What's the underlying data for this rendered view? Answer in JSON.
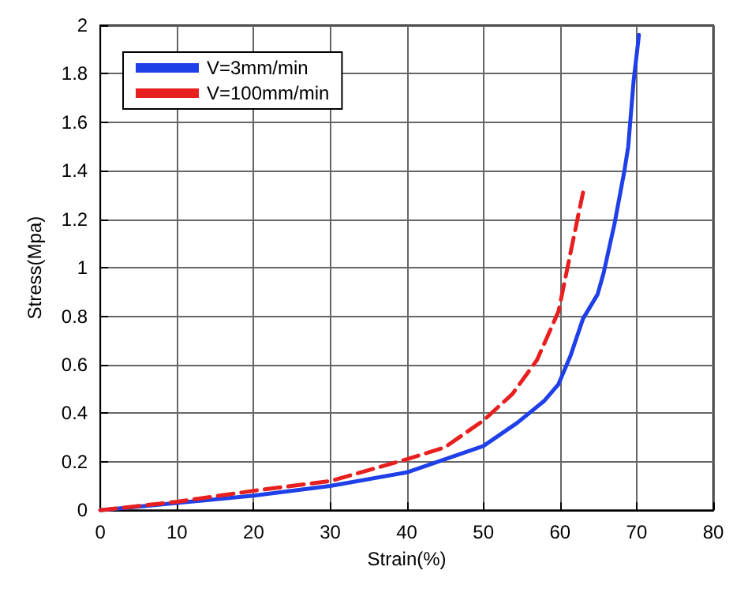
{
  "chart_data": {
    "type": "line",
    "xlabel": "Strain(%)",
    "ylabel": "Stress(Mpa)",
    "xlim": [
      0,
      80
    ],
    "xticks": [
      0,
      10,
      20,
      30,
      40,
      50,
      60,
      70,
      80
    ],
    "ylim": [
      0,
      2
    ],
    "yticks": [
      0,
      0.2,
      0.4,
      0.6,
      0.8,
      1,
      1.2,
      1.4,
      1.6,
      1.8,
      2
    ],
    "grid": true,
    "legend": "top left",
    "marker": "none",
    "series": [
      {
        "name": "V=3mm/min",
        "color": "#1f3fe8",
        "line_style": "solid",
        "x": [
          0,
          10,
          20,
          30,
          40,
          50,
          54.4,
          57.9,
          59.8,
          61.4,
          63,
          64.9,
          65.7,
          67.1,
          68.4,
          68.9,
          69.6,
          70.3
        ],
        "values": [
          0,
          0.03,
          0.06,
          0.1,
          0.156,
          0.265,
          0.36,
          0.45,
          0.52,
          0.64,
          0.79,
          0.89,
          0.98,
          1.18,
          1.4,
          1.5,
          1.77,
          1.96
        ]
      },
      {
        "name": "V=100mm/min",
        "color": "#e81f1f",
        "line_style": "dashed",
        "x": [
          0,
          10,
          20,
          30,
          40,
          45,
          50,
          53.8,
          57,
          59.8,
          61.1,
          62.4,
          63
        ],
        "values": [
          0,
          0.035,
          0.08,
          0.12,
          0.21,
          0.26,
          0.37,
          0.48,
          0.62,
          0.82,
          1.02,
          1.22,
          1.31
        ]
      }
    ]
  }
}
